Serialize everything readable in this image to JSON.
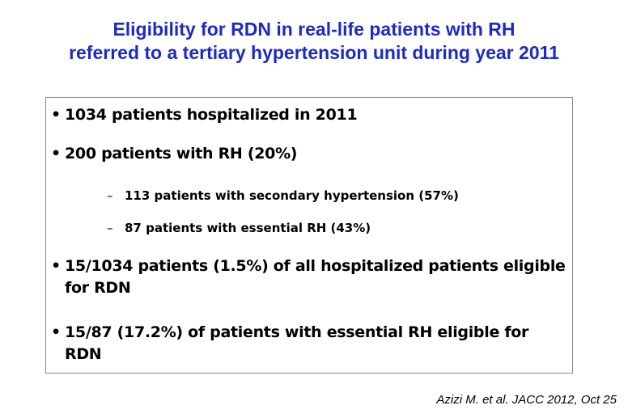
{
  "title": {
    "line1": "Eligibility for RDN in real-life patients with RH",
    "line2": "referred to a tertiary hypertension unit during year 2011",
    "color": "#1c2bc4"
  },
  "bullets": [
    {
      "marker": "•",
      "text": "1034 patients hospitalized in 2011"
    },
    {
      "marker": "•",
      "text": "200 patients with RH (20%)"
    },
    {
      "marker": "•",
      "text": "15/1034 patients (1.5%) of all hospitalized patients eligible for RDN"
    },
    {
      "marker": "•",
      "text": "15/87 (17.2%) of patients with essential RH eligible for RDN"
    }
  ],
  "sub_bullets": [
    {
      "marker": "–",
      "text": "113 patients with secondary hypertension (57%)"
    },
    {
      "marker": "–",
      "text": "87 patients with essential RH (43%)"
    }
  ],
  "citation": "Azizi M. et al. JACC 2012, Oct 25"
}
